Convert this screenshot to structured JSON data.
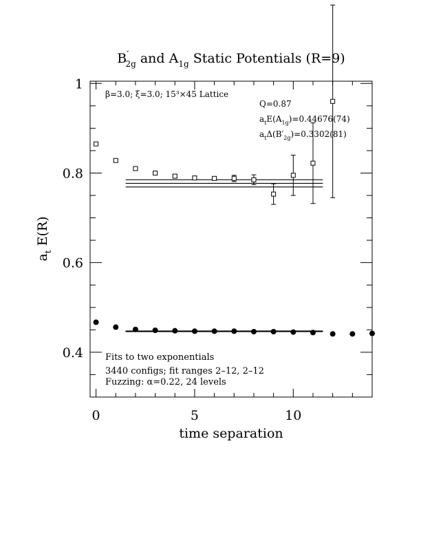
{
  "chart_data": {
    "type": "scatter",
    "title": "B′ 2g and A 1g Static Potentials (R=9)",
    "title_parts": {
      "b": "B",
      "b_prime": "′",
      "b_sub": "2g",
      "and": " and ",
      "a": "A",
      "a_sub": "1g",
      "rest": " Static Potentials (R=9)"
    },
    "xlabel": "time separation",
    "ylabel_parts": {
      "main": "a",
      "sub": "t",
      "rest": " E(R)"
    },
    "xlim": [
      -0.3,
      14
    ],
    "ylim": [
      0.3,
      1.005
    ],
    "x_ticks": [
      0,
      5,
      10
    ],
    "x_tick_labels": [
      "0",
      "5",
      "10"
    ],
    "y_ticks": [
      0.4,
      0.6,
      0.8,
      1.0
    ],
    "y_tick_labels": [
      "0.4",
      "0.6",
      "0.8",
      "1"
    ],
    "grid": false,
    "legend": "none",
    "annotations": {
      "lattice": "β=3.0; ξ=3.0; 15³×45 Lattice",
      "q": "Q=0.87",
      "energy": {
        "pre": "a",
        "pre_sub": "t",
        "mid": "E(A",
        "mid_sub": "1g",
        "post": ")=0.44676(74)"
      },
      "gap": {
        "pre": "a",
        "pre_sub": "t",
        "mid": "Δ(B′",
        "mid_sub": "2g",
        "post": ")=0.3302(81)"
      },
      "fits": "Fits to two exponentials",
      "configs": "3440 configs; fit ranges 2–12, 2–12",
      "fuzzing": "Fuzzing: α=0.22, 24 levels"
    },
    "series": [
      {
        "name": "A1g",
        "marker": "filled-circle",
        "points": [
          {
            "x": 0,
            "y": 0.467
          },
          {
            "x": 1,
            "y": 0.456
          },
          {
            "x": 2,
            "y": 0.451
          },
          {
            "x": 3,
            "y": 0.449
          },
          {
            "x": 4,
            "y": 0.448
          },
          {
            "x": 5,
            "y": 0.447
          },
          {
            "x": 6,
            "y": 0.447
          },
          {
            "x": 7,
            "y": 0.447
          },
          {
            "x": 8,
            "y": 0.446
          },
          {
            "x": 9,
            "y": 0.446
          },
          {
            "x": 10,
            "y": 0.445
          },
          {
            "x": 11,
            "y": 0.444
          },
          {
            "x": 12,
            "y": 0.441
          },
          {
            "x": 13,
            "y": 0.441
          },
          {
            "x": 14,
            "y": 0.442
          }
        ]
      },
      {
        "name": "B'2g",
        "marker": "open-square",
        "points": [
          {
            "x": 0,
            "y": 0.865,
            "err": 0.002
          },
          {
            "x": 1,
            "y": 0.828,
            "err": 0.002
          },
          {
            "x": 2,
            "y": 0.81,
            "err": 0.002
          },
          {
            "x": 3,
            "y": 0.8,
            "err": 0.002
          },
          {
            "x": 4,
            "y": 0.793,
            "err": 0.003
          },
          {
            "x": 5,
            "y": 0.789,
            "err": 0.004
          },
          {
            "x": 6,
            "y": 0.788,
            "err": 0.004
          },
          {
            "x": 7,
            "y": 0.788,
            "err": 0.007
          },
          {
            "x": 8,
            "y": 0.785,
            "err": 0.011
          },
          {
            "x": 9,
            "y": 0.753,
            "err": 0.023
          },
          {
            "x": 10,
            "y": 0.795,
            "err": 0.045
          },
          {
            "x": 11,
            "y": 0.822,
            "err": 0.09
          },
          {
            "x": 12,
            "y": 0.96,
            "err": 0.215
          }
        ]
      }
    ],
    "fit_bands": [
      {
        "name": "B'2g fit",
        "x": [
          1.5,
          11.5
        ],
        "central": 0.777,
        "err": 0.0081
      },
      {
        "name": "A1g fit",
        "x": [
          1.5,
          11.5
        ],
        "central": 0.44676,
        "err": 0.00074
      }
    ]
  }
}
